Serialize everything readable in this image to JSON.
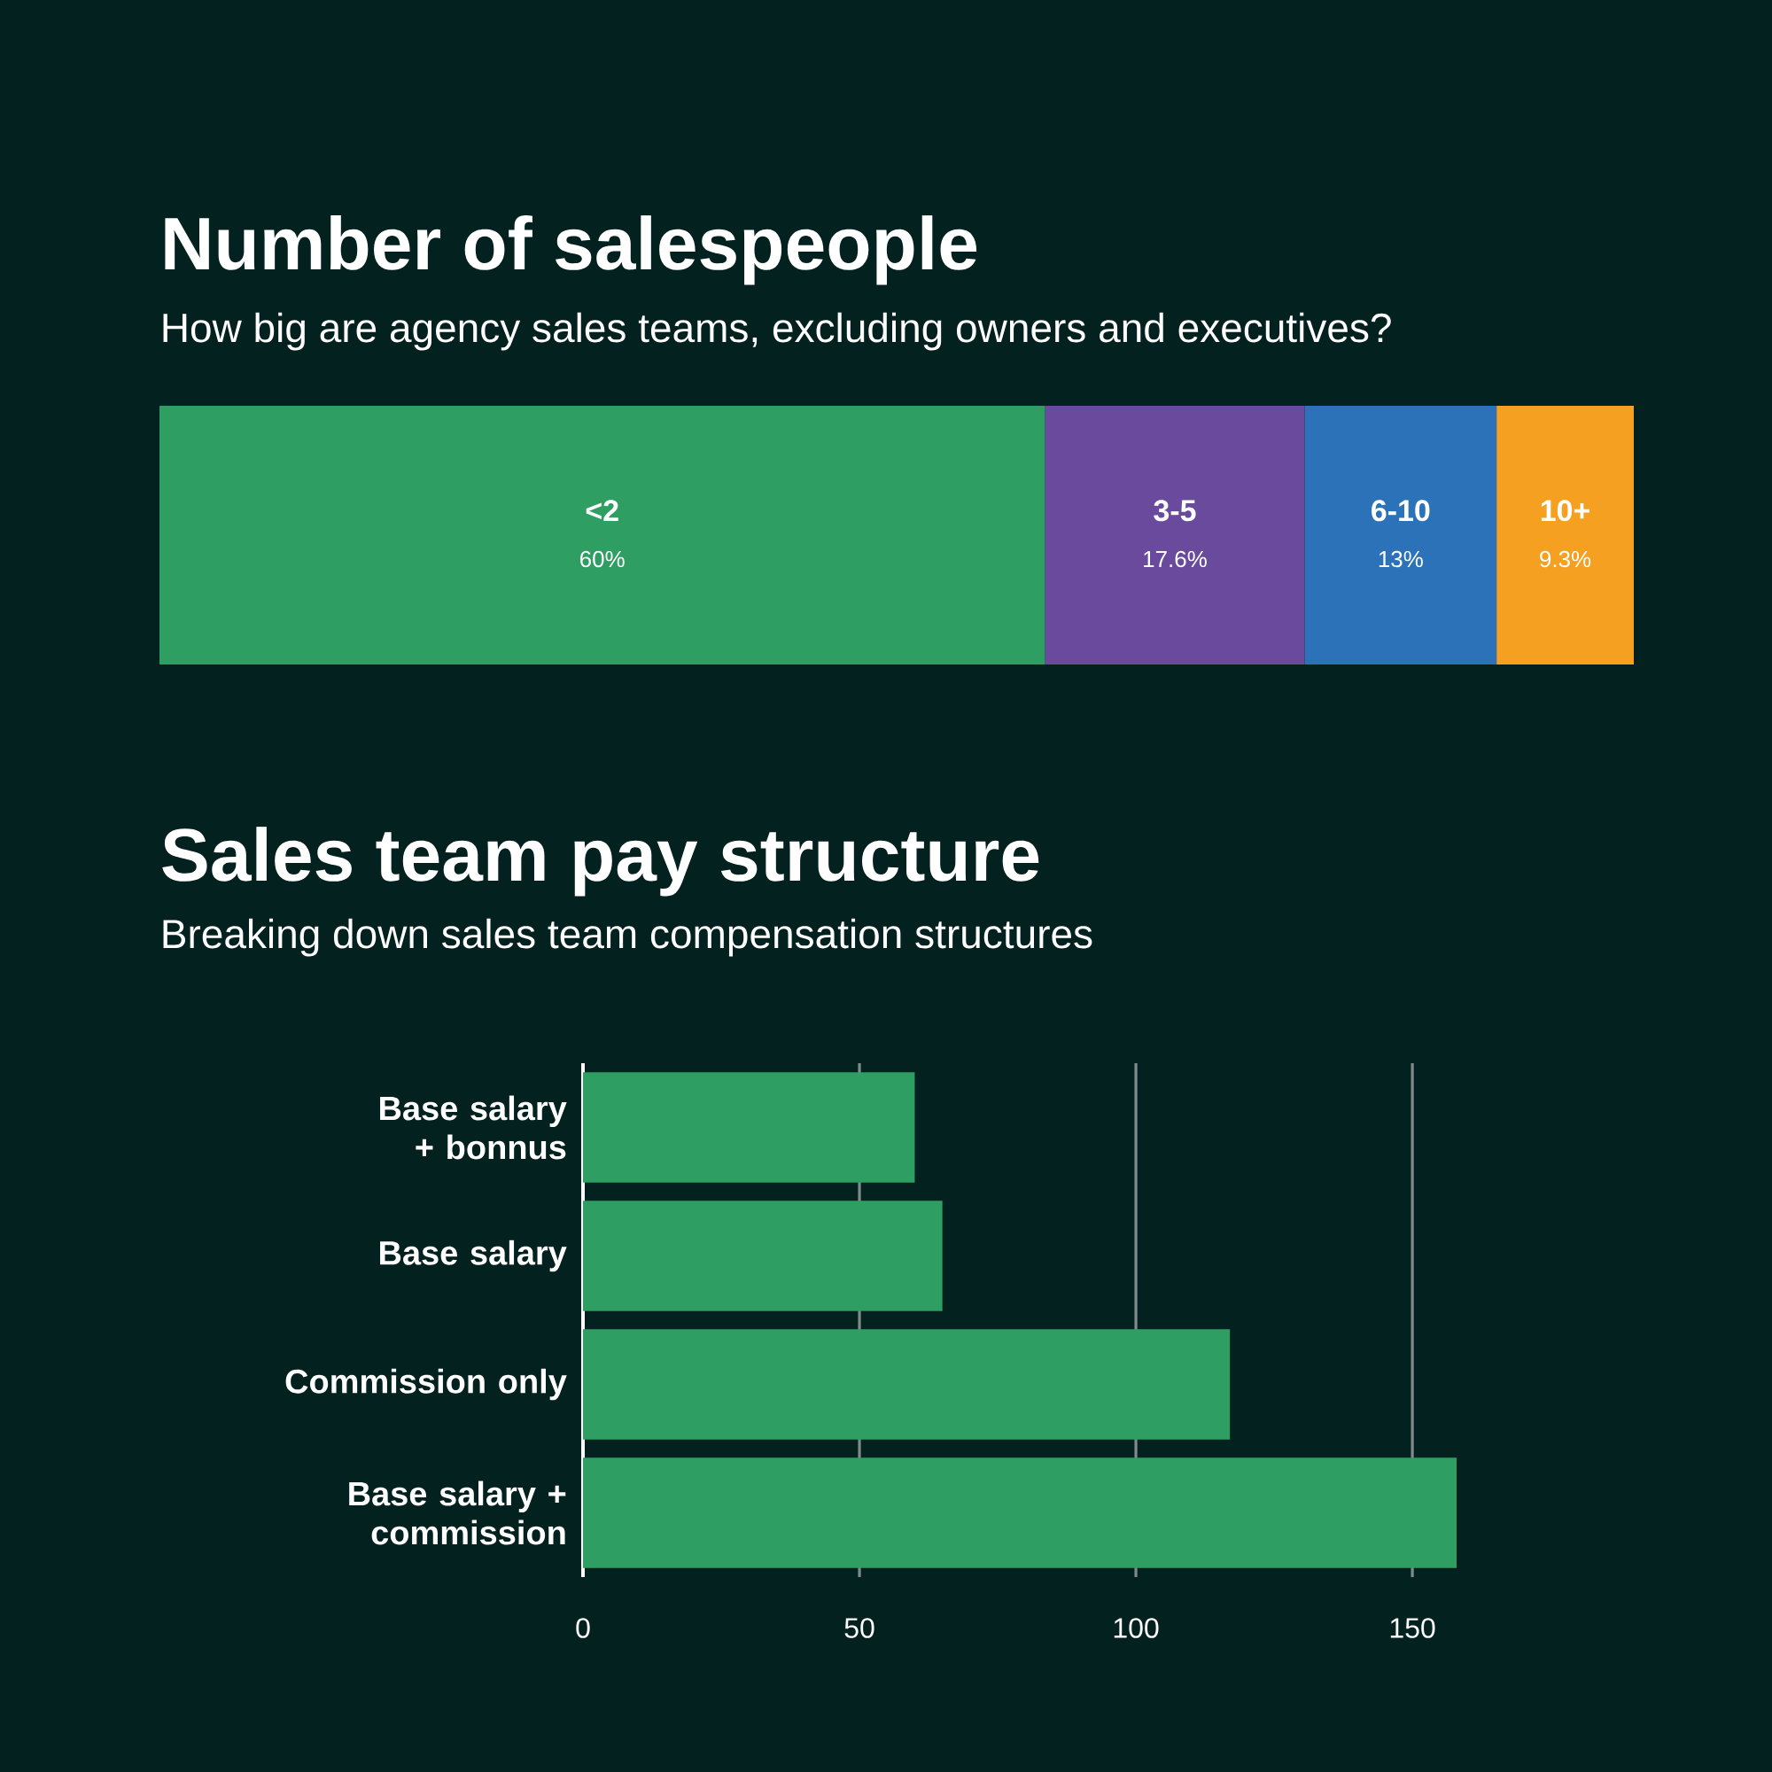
{
  "chart_data": [
    {
      "type": "bar",
      "orientation": "horizontal",
      "stacked": true,
      "title": "Number of salespeople",
      "subtitle": "How big are agency sales teams, excluding owners and executives?",
      "categories": [
        null
      ],
      "tick_labels": false,
      "series": [
        {
          "name": "<2",
          "color": "#2e9e63",
          "values": [
            60
          ],
          "value_labels": [
            "60%"
          ]
        },
        {
          "name": "3-5",
          "color": "#6a4a9c",
          "values": [
            17.6
          ],
          "value_labels": [
            "17.6%"
          ]
        },
        {
          "name": "6-10",
          "color": "#2b72b8",
          "values": [
            13
          ],
          "value_labels": [
            "13%"
          ]
        },
        {
          "name": "10+",
          "color": "#f5a020",
          "values": [
            9.3
          ],
          "value_labels": [
            "9.3%"
          ]
        }
      ]
    },
    {
      "type": "bar",
      "orientation": "horizontal",
      "title": "Sales team pay structure",
      "subtitle": "Breaking down sales team compensation structures",
      "categories": [
        "Base salary + bonnus",
        "Base salary",
        "Commission only",
        "Base salary + commission"
      ],
      "values": [
        60,
        65,
        117,
        158
      ],
      "color": "#2e9e63",
      "xlim": [
        0,
        158
      ],
      "xticks": [
        0,
        50,
        100,
        150
      ],
      "grid": "x"
    }
  ]
}
